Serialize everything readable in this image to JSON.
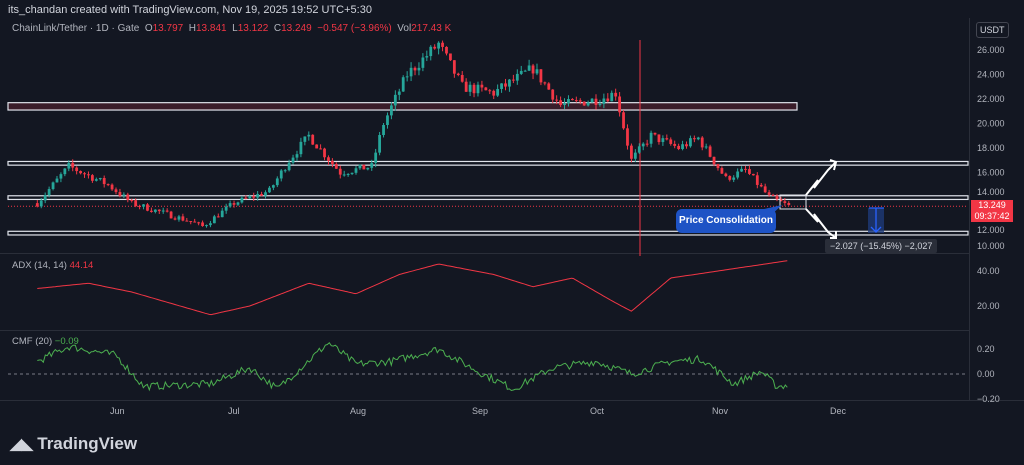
{
  "header": {
    "credit": "its_chandan created with TradingView.com, Nov 19, 2025 19:52 UTC+5:30",
    "symbol": "ChainLink/Tether · 1D · Gate",
    "o": "13.797",
    "h": "13.841",
    "l": "13.122",
    "c": "13.249",
    "chg": "−0.547 (−3.96%)",
    "vol": "217.43 K",
    "currency": "USDT"
  },
  "price_label": {
    "price": "13.249",
    "countdown": "09:37:42"
  },
  "annotation": {
    "callout": "Price Consolidation",
    "measure": "−2.027 (−15.45%) −2,027"
  },
  "panes": {
    "adx": {
      "name": "ADX (14, 14)",
      "value": "44.14"
    },
    "cmf": {
      "name": "CMF (20)",
      "value": "−0.09"
    }
  },
  "brand": "TradingView",
  "colors": {
    "up": "#26a69a",
    "down": "#f23645",
    "adx": "#f23645",
    "cmf": "#4caf50",
    "bg": "#131722"
  },
  "chart_data": [
    {
      "type": "candlestick",
      "title": "ChainLink/Tether · 1D · Gate",
      "ylim": [
        9.5,
        27.5
      ],
      "yticks": [
        "26.000",
        "24.000",
        "22.000",
        "20.000",
        "18.000",
        "16.000",
        "14.000",
        "12.000",
        "10.000"
      ],
      "xticks": [
        "Jun",
        "Jul",
        "Aug",
        "Sep",
        "Oct",
        "Nov",
        "Dec"
      ],
      "close_path": [
        [
          "2025-05-12",
          13.5
        ],
        [
          "2025-05-20",
          16.5
        ],
        [
          "2025-05-30",
          15.0
        ],
        [
          "2025-06-05",
          13.5
        ],
        [
          "2025-06-20",
          12.0
        ],
        [
          "2025-06-23",
          11.6
        ],
        [
          "2025-07-01",
          13.5
        ],
        [
          "2025-07-10",
          14.5
        ],
        [
          "2025-07-15",
          17.0
        ],
        [
          "2025-07-20",
          19.0
        ],
        [
          "2025-07-28",
          16.0
        ],
        [
          "2025-08-05",
          16.5
        ],
        [
          "2025-08-08",
          20.0
        ],
        [
          "2025-08-14",
          24.0
        ],
        [
          "2025-08-22",
          26.5
        ],
        [
          "2025-08-28",
          23.0
        ],
        [
          "2025-09-05",
          22.5
        ],
        [
          "2025-09-15",
          24.5
        ],
        [
          "2025-09-22",
          21.5
        ],
        [
          "2025-10-02",
          22.0
        ],
        [
          "2025-10-06",
          22.5
        ],
        [
          "2025-10-10",
          17.0
        ],
        [
          "2025-10-15",
          19.0
        ],
        [
          "2025-10-22",
          18.0
        ],
        [
          "2025-10-27",
          18.8
        ],
        [
          "2025-11-03",
          15.5
        ],
        [
          "2025-11-08",
          16.2
        ],
        [
          "2025-11-14",
          14.0
        ],
        [
          "2025-11-19",
          13.249
        ]
      ],
      "zones": [
        [
          21.1,
          21.7
        ],
        [
          16.6,
          16.9
        ],
        [
          13.8,
          14.1
        ],
        [
          10.9,
          11.2
        ]
      ]
    },
    {
      "type": "line",
      "name": "ADX (14, 14)",
      "ylim": [
        10,
        48
      ],
      "yticks": [
        "40.00",
        "20.00"
      ],
      "path": [
        [
          "2025-05-12",
          30
        ],
        [
          "2025-05-25",
          33
        ],
        [
          "2025-06-05",
          28
        ],
        [
          "2025-06-25",
          15
        ],
        [
          "2025-07-05",
          20
        ],
        [
          "2025-07-20",
          33
        ],
        [
          "2025-08-01",
          27
        ],
        [
          "2025-08-12",
          38
        ],
        [
          "2025-08-22",
          44
        ],
        [
          "2025-09-05",
          38
        ],
        [
          "2025-09-15",
          31
        ],
        [
          "2025-09-25",
          36
        ],
        [
          "2025-10-05",
          23
        ],
        [
          "2025-10-10",
          17
        ],
        [
          "2025-10-20",
          36
        ],
        [
          "2025-11-01",
          40
        ],
        [
          "2025-11-10",
          43
        ],
        [
          "2025-11-19",
          46
        ]
      ]
    },
    {
      "type": "line",
      "name": "CMF (20)",
      "ylim": [
        -0.28,
        0.3
      ],
      "yticks": [
        "0.20",
        "0.00",
        "−0.20"
      ],
      "path": [
        [
          "2025-05-12",
          0.1
        ],
        [
          "2025-05-20",
          0.22
        ],
        [
          "2025-06-01",
          0.15
        ],
        [
          "2025-06-08",
          -0.1
        ],
        [
          "2025-06-25",
          -0.08
        ],
        [
          "2025-07-05",
          0.05
        ],
        [
          "2025-07-12",
          -0.12
        ],
        [
          "2025-07-25",
          0.25
        ],
        [
          "2025-08-01",
          0.08
        ],
        [
          "2025-08-10",
          0.1
        ],
        [
          "2025-08-22",
          0.2
        ],
        [
          "2025-09-01",
          0.02
        ],
        [
          "2025-09-10",
          -0.12
        ],
        [
          "2025-09-20",
          0.05
        ],
        [
          "2025-10-01",
          0.1
        ],
        [
          "2025-10-10",
          0.0
        ],
        [
          "2025-10-20",
          0.1
        ],
        [
          "2025-10-28",
          0.12
        ],
        [
          "2025-11-05",
          -0.08
        ],
        [
          "2025-11-12",
          0.02
        ],
        [
          "2025-11-16",
          -0.1
        ],
        [
          "2025-11-19",
          -0.09
        ]
      ]
    }
  ]
}
